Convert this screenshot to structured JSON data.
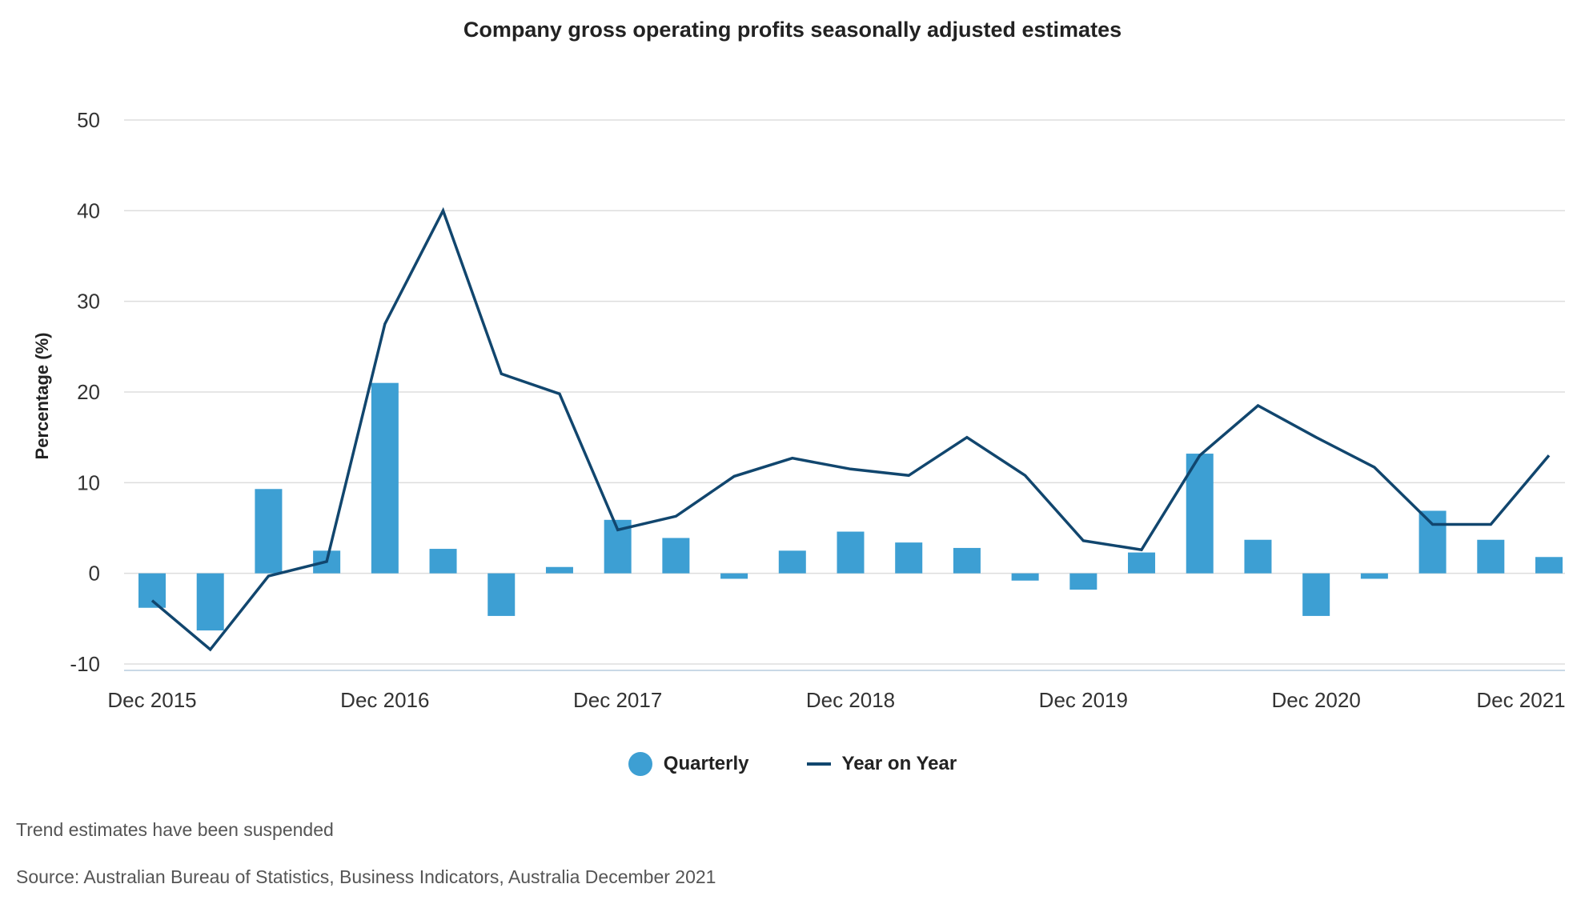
{
  "chart_data": {
    "type": "bar+line",
    "title": "Company gross operating profits seasonally adjusted estimates",
    "ylabel": "Percentage (%)",
    "xlabel": "",
    "ylim": [
      -10,
      50
    ],
    "yticks": [
      -10,
      0,
      10,
      20,
      30,
      40,
      50
    ],
    "x_tick_labels": [
      "Dec 2015",
      "Dec 2016",
      "Dec 2017",
      "Dec 2018",
      "Dec 2019",
      "Dec 2020",
      "Dec 2021"
    ],
    "x_tick_indices": [
      0,
      4,
      8,
      12,
      16,
      20,
      24
    ],
    "grid": true,
    "legend_position": "bottom-center",
    "series": [
      {
        "name": "Quarterly",
        "type": "bar",
        "color": "#3d9fd3",
        "values": [
          -3.8,
          -6.3,
          9.3,
          2.5,
          21.0,
          2.7,
          -4.7,
          0.7,
          5.9,
          3.9,
          -0.6,
          2.5,
          4.6,
          3.4,
          2.8,
          -0.8,
          -1.8,
          2.3,
          13.2,
          3.7,
          -4.7,
          -0.6,
          6.9,
          3.7,
          1.8
        ]
      },
      {
        "name": "Year on Year",
        "type": "line",
        "color": "#11466e",
        "values": [
          -3.0,
          -8.4,
          -0.3,
          1.3,
          27.5,
          40.0,
          22.0,
          19.8,
          4.8,
          6.3,
          10.7,
          12.7,
          11.5,
          10.8,
          15.0,
          10.8,
          3.6,
          2.6,
          13.0,
          18.5,
          15.0,
          11.7,
          5.4,
          5.4,
          13.0
        ]
      }
    ]
  },
  "legend": {
    "items": [
      {
        "label": "Quarterly",
        "color": "#3d9fd3",
        "marker": "dot"
      },
      {
        "label": "Year on Year",
        "color": "#11466e",
        "marker": "line"
      }
    ]
  },
  "notes": {
    "trend": "Trend estimates have been suspended",
    "source": "Source: Australian Bureau of Statistics, Business Indicators, Australia December 2021"
  }
}
